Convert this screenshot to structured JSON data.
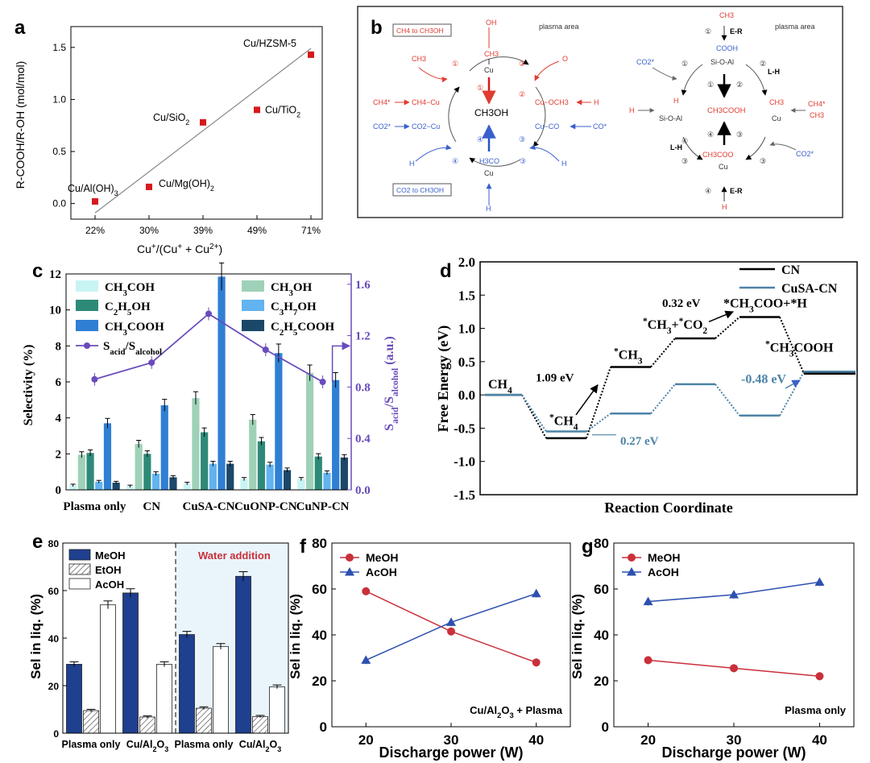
{
  "panels": {
    "a": {
      "letter": "a",
      "chart_ref": 0
    },
    "b": {
      "letter": "b",
      "left_cycle": {
        "plasma_area": "plasma area",
        "box_top": "CH4 to CH3OH",
        "box_bottom": "CO2 to CH3OH",
        "center": "CH3OH",
        "top_species": [
          "OH",
          "CH3",
          "Cu"
        ],
        "bottom_species": [
          "H3CO",
          "Cu"
        ],
        "left_top": "CH3",
        "left_mid_a": "CH4*",
        "left_mid_b": "CH4−Cu",
        "left_low_a": "CO2*",
        "left_low_b": "CO2−Cu",
        "left_bottom": "H",
        "right_top": "O",
        "right_mid": "Cu−OCH3",
        "right_mid_h": "H",
        "right_low": "Cu−CO",
        "right_low_b": "CO*",
        "right_bottom": "H",
        "bottom_h": "H",
        "steps": [
          "①",
          "②",
          "③",
          "④"
        ]
      },
      "right_cycle": {
        "plasma_area": "plasma area",
        "top_ch3": "CH3",
        "er": "E-R",
        "lh": "L-H",
        "cooh": "COOH",
        "sioal": "Si-O-Al",
        "co2": "CO2*",
        "h": "H",
        "ch3cooh": "CH3COOH",
        "ch3": "CH3",
        "cu": "Cu",
        "ch4": "CH4*",
        "ch3coo": "CH3COO",
        "steps": [
          "①",
          "②",
          "③",
          "④"
        ]
      }
    },
    "c": {
      "letter": "c",
      "chart_ref": 1
    },
    "d": {
      "letter": "d",
      "chart_ref": 2
    },
    "e": {
      "letter": "e",
      "chart_ref": 3
    },
    "f": {
      "letter": "f",
      "chart_ref": 4
    },
    "g": {
      "letter": "g",
      "chart_ref": 5
    }
  },
  "colors": {
    "red": "#d7191c",
    "blue": "#2352c9",
    "scheme_red": "#e03c31",
    "scheme_blue": "#3a5fcd",
    "purple": "#6a4bbc",
    "navy": "#1f3f8f",
    "light_cyan": "#c9f4f4",
    "sage": "#9fd1b8",
    "teal": "#2e8a78",
    "sky": "#62b3ef",
    "mid_blue": "#2f7fd4",
    "dark_navy": "#1b4869",
    "steel": "#4d83a7",
    "lightblue_bg": "#eaf5fb",
    "series_red": "#c9303a",
    "series_blue": "#2d50b0"
  },
  "chart_data": [
    {
      "id": "a",
      "type": "scatter",
      "xlabel": "Cu+/(Cu+ + Cu2+)",
      "ylabel": "R-COOH/R-OH (mol/mol)",
      "categories": [
        "22%",
        "30%",
        "39%",
        "49%",
        "71%"
      ],
      "ylim": [
        -0.15,
        1.7
      ],
      "yticks": [
        "0.0",
        "0.5",
        "1.0",
        "1.5"
      ],
      "points": [
        {
          "label": "Cu/Al(OH)3",
          "x": "22%",
          "y": 0.02
        },
        {
          "label": "Cu/Mg(OH)2",
          "x": "30%",
          "y": 0.16
        },
        {
          "label": "Cu/SiO2",
          "x": "39%",
          "y": 0.78
        },
        {
          "label": "Cu/TiO2",
          "x": "49%",
          "y": 0.9
        },
        {
          "label": "Cu/HZSM-5",
          "x": "71%",
          "y": 1.43
        }
      ],
      "fit": [
        {
          "x": "22%",
          "y": -0.09
        },
        {
          "x": "71%",
          "y": 1.49
        }
      ]
    },
    {
      "id": "c",
      "type": "bar",
      "xlabel": "",
      "ylabel": "Selectivity (%)",
      "y2label": "Sacid/Salcohol (a.u.)",
      "categories": [
        "Plasma only",
        "CN",
        "CuSA-CN",
        "CuONP-CN",
        "CuNP-CN"
      ],
      "ylim": [
        0,
        12
      ],
      "yticks": [
        "0",
        "2",
        "4",
        "6",
        "8",
        "10",
        "12"
      ],
      "y2lim": [
        0,
        1.68
      ],
      "y2ticks": [
        "0.0",
        "0.4",
        "0.8",
        "1.2",
        "1.6"
      ],
      "series": [
        {
          "name": "CH3COH",
          "values": [
            0.25,
            0.2,
            0.35,
            0.6,
            0.6
          ]
        },
        {
          "name": "CH3OH",
          "values": [
            1.95,
            2.55,
            5.1,
            3.9,
            6.5
          ]
        },
        {
          "name": "C2H5OH",
          "values": [
            2.05,
            2.0,
            3.2,
            2.7,
            1.85
          ]
        },
        {
          "name": "C3H7OH",
          "values": [
            0.45,
            0.9,
            1.45,
            1.4,
            0.95
          ]
        },
        {
          "name": "CH3COOH",
          "values": [
            3.7,
            4.7,
            11.85,
            7.6,
            6.1
          ]
        },
        {
          "name": "C2H5COOH",
          "values": [
            0.4,
            0.7,
            1.45,
            1.1,
            1.8
          ]
        }
      ],
      "line": {
        "name": "Sacid/Salcohol",
        "values": [
          0.86,
          0.99,
          1.37,
          1.09,
          0.84
        ]
      }
    },
    {
      "id": "d",
      "type": "line",
      "xlabel": "Reaction Coordinate",
      "ylabel": "Free Energy (eV)",
      "ylim": [
        -1.5,
        2.0
      ],
      "yticks": [
        "-1.5",
        "-1.0",
        "-0.5",
        "0.0",
        "0.5",
        "1.0",
        "1.5",
        "2.0"
      ],
      "series": [
        {
          "name": "CN",
          "levels": [
            0.0,
            -0.65,
            0.42,
            0.85,
            1.17,
            0.32
          ]
        },
        {
          "name": "CuSA-CN",
          "levels": [
            0.0,
            -0.55,
            -0.28,
            0.16,
            -0.31,
            0.35
          ]
        }
      ],
      "labels": [
        "CH4",
        "*CH4",
        "*CH3",
        "*CH3+*CO2",
        "*CH3COO+*H",
        "*CH3COOH"
      ],
      "annotations": [
        "1.09 eV",
        "0.32 eV",
        "0.27 eV",
        "-0.48 eV"
      ]
    },
    {
      "id": "e",
      "type": "bar",
      "xlabel": "",
      "ylabel": "Sel in liq. (%)",
      "categories": [
        "Plasma only",
        "Cu/Al2O3",
        "Plasma only",
        "Cu/Al2O3"
      ],
      "section_label": "Water addition",
      "ylim": [
        0,
        80
      ],
      "yticks": [
        "0",
        "20",
        "40",
        "60",
        "80"
      ],
      "series": [
        {
          "name": "MeOH",
          "values": [
            29,
            59,
            41.5,
            66
          ]
        },
        {
          "name": "EtOH",
          "values": [
            9.5,
            6.8,
            10.5,
            7
          ]
        },
        {
          "name": "AcOH",
          "values": [
            54,
            29,
            36.5,
            19.5
          ]
        }
      ]
    },
    {
      "id": "f",
      "type": "line",
      "xlabel": "Discharge power (W)",
      "ylabel": "Sel in liq. (%)",
      "x": [
        20,
        30,
        40
      ],
      "ylim": [
        0,
        80
      ],
      "yticks": [
        "0",
        "20",
        "40",
        "60",
        "80"
      ],
      "xticks": [
        "20",
        "30",
        "40"
      ],
      "series": [
        {
          "name": "MeOH",
          "values": [
            59,
            41.5,
            28
          ]
        },
        {
          "name": "AcOH",
          "values": [
            29,
            45.5,
            58
          ]
        }
      ],
      "annotation": "Cu/Al2O3 + Plasma"
    },
    {
      "id": "g",
      "type": "line",
      "xlabel": "Discharge power (W)",
      "ylabel": "Sel in liq. (%)",
      "x": [
        20,
        30,
        40
      ],
      "ylim": [
        0,
        80
      ],
      "yticks": [
        "0",
        "20",
        "40",
        "60",
        "80"
      ],
      "xticks": [
        "20",
        "30",
        "40"
      ],
      "series": [
        {
          "name": "MeOH",
          "values": [
            29,
            25.5,
            22
          ]
        },
        {
          "name": "AcOH",
          "values": [
            54.5,
            57.5,
            63
          ]
        }
      ],
      "annotation": "Plasma only"
    }
  ]
}
